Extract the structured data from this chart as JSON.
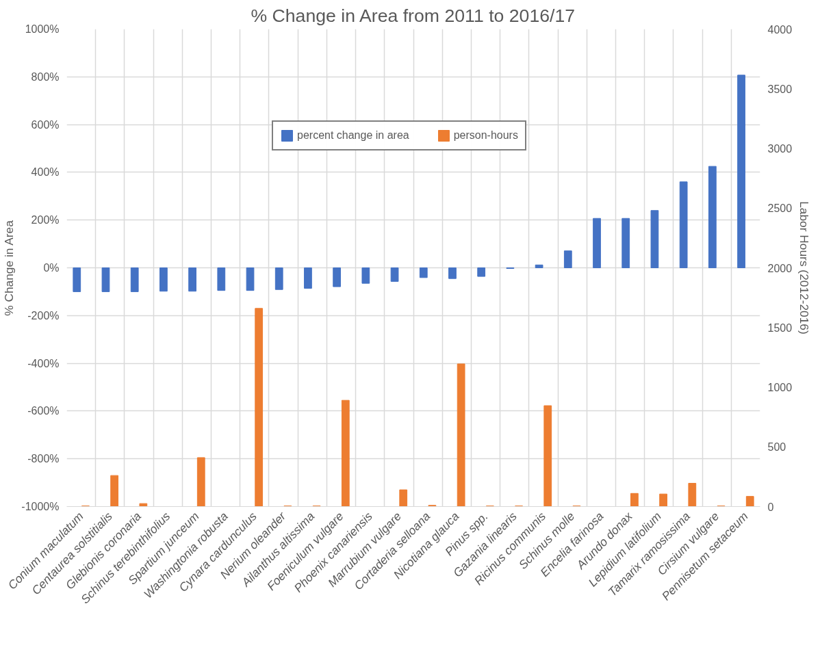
{
  "chart_data": {
    "type": "bar",
    "title": "% Change in Area from 2011 to 2016/17",
    "ylabel": "% Change in Area",
    "y2label": "Labor Hours (2012-2016)",
    "categories": [
      "Conium maculatum",
      "Centaurea solstitialis",
      "Glebionis coronaria",
      "Schinus terebinthifolius",
      "Spartium junceum",
      "Washingtonia robusta",
      "Cynara cardunculus",
      "Nerium oleander",
      "Ailanthus altissima",
      "Foeniculum vulgare",
      "Phoenix canariensis",
      "Marrubium vulgare",
      "Cortaderia selloana",
      "Nicotiana glauca",
      "Pinus spp.",
      "Gazania linearis",
      "Ricinus communis",
      "Schinus molle",
      "Encelia farinosa",
      "Arundo donax",
      "Lepidium latifolium",
      "Tamarix ramosissima",
      "Cirsium vulgare",
      "Pennisetum setaceum"
    ],
    "series": [
      {
        "name": "percent change in area",
        "color": "#4472c4",
        "values": [
          -100,
          -100,
          -100,
          -98,
          -98,
          -95,
          -95,
          -91,
          -86,
          -79,
          -65,
          -57,
          -41,
          -45,
          -36,
          -3,
          12,
          71,
          207,
          207,
          240,
          360,
          425,
          807
        ]
      },
      {
        "name": "person-hours",
        "color": "#ed7d31",
        "axis": "y2",
        "values": [
          5,
          260,
          25,
          0,
          410,
          0,
          1660,
          5,
          5,
          890,
          0,
          140,
          10,
          1195,
          5,
          5,
          845,
          5,
          0,
          110,
          105,
          195,
          5,
          85
        ]
      }
    ],
    "ylim": [
      -1000,
      1000
    ],
    "yticks": [
      {
        "value": -1000,
        "label": "-1000%"
      },
      {
        "value": -800,
        "label": "-800%"
      },
      {
        "value": -600,
        "label": "-600%"
      },
      {
        "value": -400,
        "label": "-400%"
      },
      {
        "value": -200,
        "label": "-200%"
      },
      {
        "value": 0,
        "label": "0%"
      },
      {
        "value": 200,
        "label": "200%"
      },
      {
        "value": 400,
        "label": "400%"
      },
      {
        "value": 600,
        "label": "600%"
      },
      {
        "value": 800,
        "label": "800%"
      },
      {
        "value": 1000,
        "label": "1000%"
      }
    ],
    "y2lim": [
      0,
      4000
    ],
    "y2ticks": [
      0,
      500,
      1000,
      1500,
      2000,
      2500,
      3000,
      3500,
      4000
    ],
    "grid": true,
    "legend": "top"
  }
}
